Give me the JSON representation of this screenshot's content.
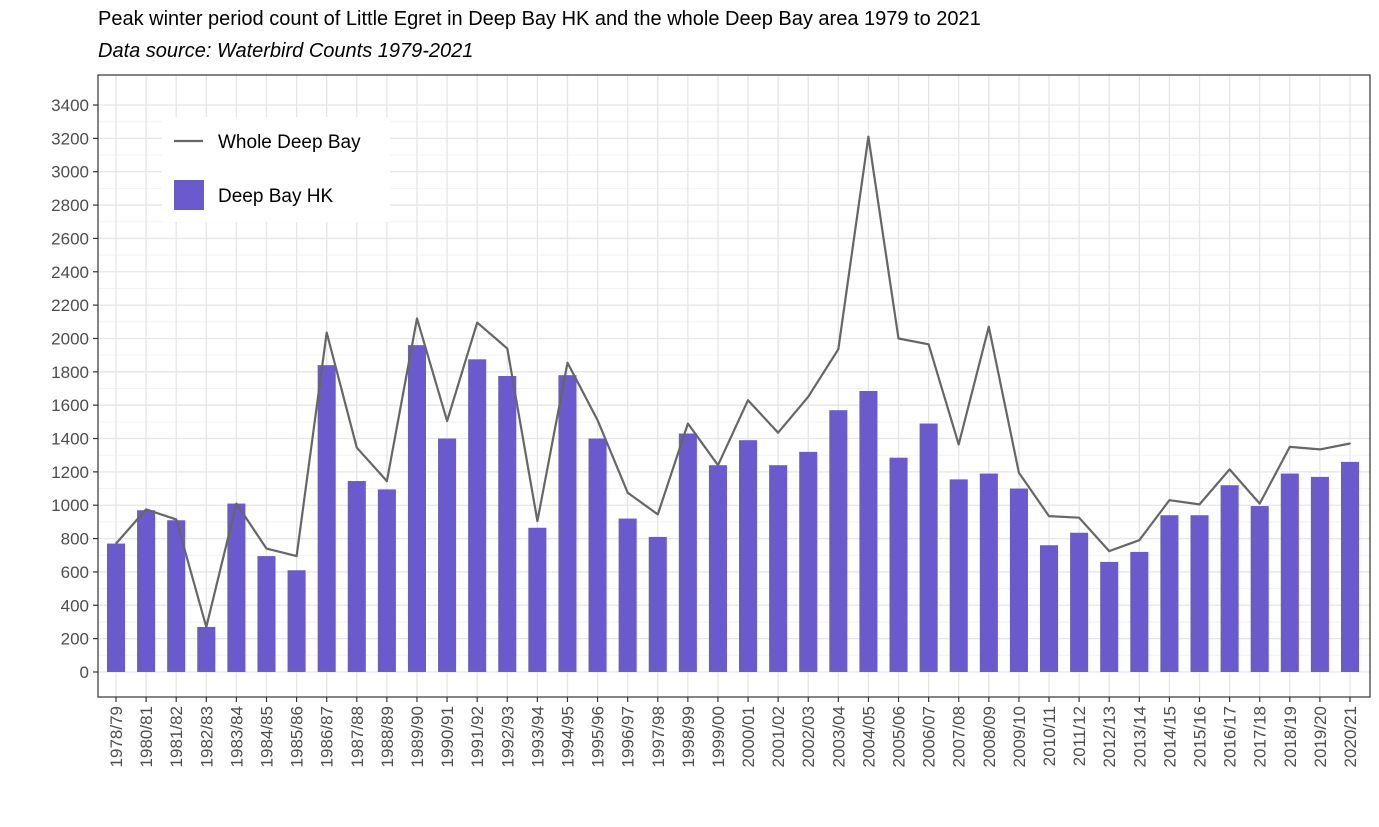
{
  "chart_data": {
    "type": "bar",
    "title": "Peak winter period count of Little Egret in Deep Bay HK and the whole Deep Bay area 1979 to 2021",
    "subtitle": "Data source: Waterbird Counts 1979-2021",
    "xlabel": "",
    "ylabel": "",
    "ylim": [
      -150,
      3580
    ],
    "yticks": [
      0,
      200,
      400,
      600,
      800,
      1000,
      1200,
      1400,
      1600,
      1800,
      2000,
      2200,
      2400,
      2600,
      2800,
      3000,
      3200,
      3400
    ],
    "grid": true,
    "legend_position": "top-left",
    "categories": [
      "1978/79",
      "1980/81",
      "1981/82",
      "1982/83",
      "1983/84",
      "1984/85",
      "1985/86",
      "1986/87",
      "1987/88",
      "1988/89",
      "1989/90",
      "1990/91",
      "1991/92",
      "1992/93",
      "1993/94",
      "1994/95",
      "1995/96",
      "1996/97",
      "1997/98",
      "1998/99",
      "1999/00",
      "2000/01",
      "2001/02",
      "2002/03",
      "2003/04",
      "2004/05",
      "2005/06",
      "2006/07",
      "2007/08",
      "2008/09",
      "2009/10",
      "2010/11",
      "2011/12",
      "2012/13",
      "2013/14",
      "2014/15",
      "2015/16",
      "2016/17",
      "2017/18",
      "2018/19",
      "2019/20",
      "2020/21"
    ],
    "series": [
      {
        "name": "Deep Bay HK",
        "type": "bar",
        "color": "#6a5acd",
        "values": [
          770,
          970,
          910,
          270,
          1010,
          695,
          610,
          1840,
          1145,
          1095,
          1960,
          1400,
          1875,
          1775,
          865,
          1780,
          1400,
          920,
          810,
          1430,
          1240,
          1390,
          1240,
          1320,
          1570,
          1685,
          1285,
          1490,
          1155,
          1190,
          1100,
          760,
          835,
          660,
          720,
          940,
          940,
          1120,
          995,
          1190,
          1170,
          1260
        ]
      },
      {
        "name": "Whole Deep Bay",
        "type": "line",
        "color": "#666666",
        "values": [
          770,
          975,
          915,
          270,
          1010,
          740,
          695,
          2035,
          1345,
          1145,
          2120,
          1505,
          2095,
          1940,
          905,
          1855,
          1510,
          1075,
          945,
          1490,
          1240,
          1630,
          1435,
          1650,
          1935,
          3210,
          2000,
          1965,
          1365,
          2070,
          1195,
          935,
          925,
          725,
          790,
          1030,
          1005,
          1215,
          1010,
          1350,
          1335,
          1370
        ]
      }
    ]
  }
}
